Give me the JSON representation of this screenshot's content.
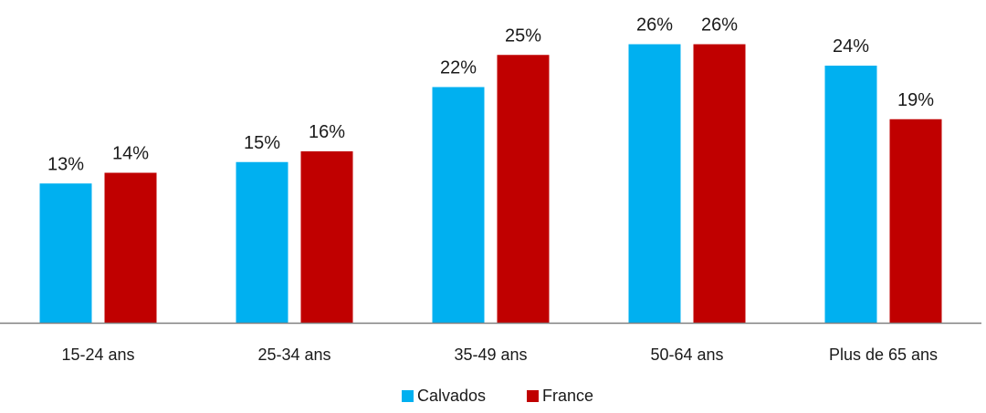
{
  "chart_data": {
    "type": "bar",
    "categories": [
      "15-24 ans",
      "25-34 ans",
      "35-49 ans",
      "50-64 ans",
      "Plus de 65 ans"
    ],
    "series": [
      {
        "name": "Calvados",
        "color": "#00b0f0",
        "values": [
          13,
          15,
          22,
          26,
          24
        ],
        "labels": [
          "13%",
          "15%",
          "22%",
          "26%",
          "24%"
        ]
      },
      {
        "name": "France",
        "color": "#c00000",
        "values": [
          14,
          16,
          25,
          26,
          19
        ],
        "labels": [
          "14%",
          "16%",
          "25%",
          "26%",
          "19%"
        ]
      }
    ],
    "value_format": "percent",
    "ylim": [
      0,
      28
    ],
    "axis_color": "#808080",
    "grid": false,
    "legend_position": "bottom-center"
  }
}
